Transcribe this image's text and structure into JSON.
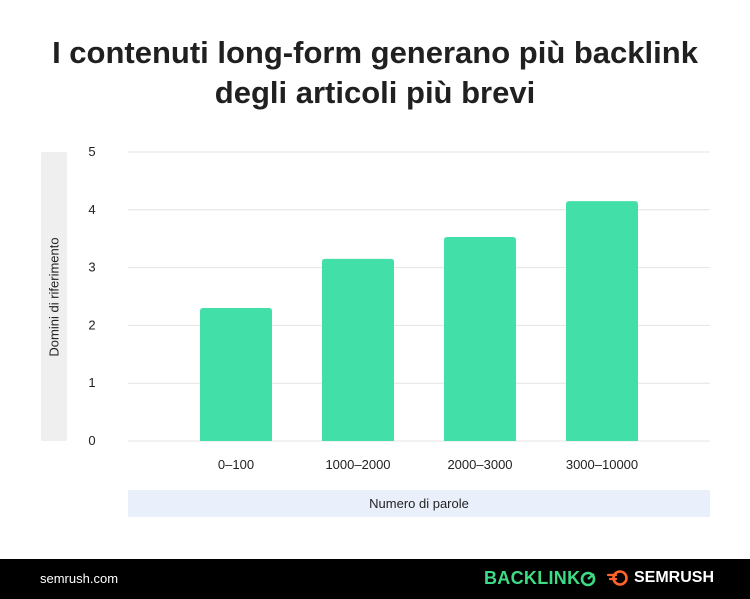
{
  "title_line1": "I contenuti long-form generano più backlink",
  "title_line2": "degli articoli più brevi",
  "chart_data": {
    "type": "bar",
    "categories": [
      "0–100",
      "1000–2000",
      "2000–3000",
      "3000–10000"
    ],
    "values": [
      2.3,
      3.15,
      3.53,
      4.15
    ],
    "xlabel": "Numero di parole",
    "ylabel": "Domini di riferimento",
    "ylim": [
      0,
      5
    ],
    "yticks": [
      "0",
      "1",
      "2",
      "3",
      "4",
      "5"
    ],
    "grid": true,
    "bar_color": "#42e0a8"
  },
  "footer": {
    "site": "semrush.com",
    "logo_backlinko_text": "BACKLINK",
    "logo_semrush_text": "SEMRUSH",
    "backlinko_color": "#3ddc84",
    "semrush_icon_color": "#ff642d"
  }
}
